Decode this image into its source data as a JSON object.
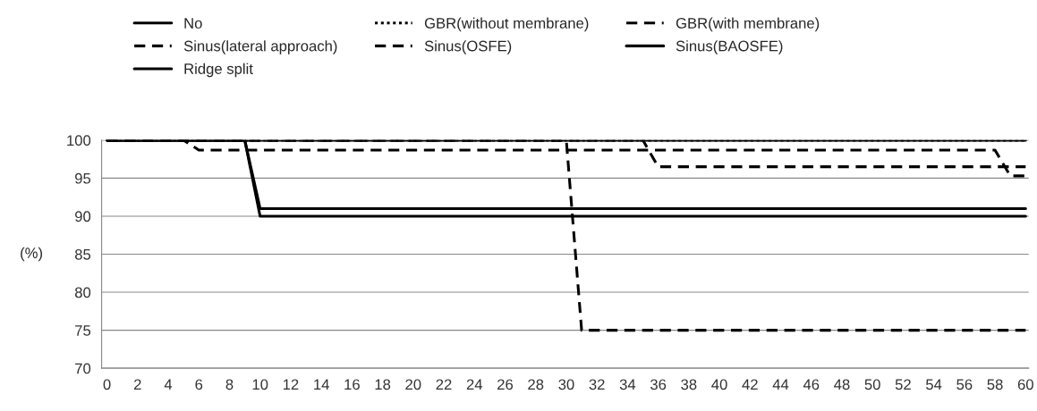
{
  "chart_data": {
    "type": "line",
    "ylabel": "(%)",
    "series": [
      {
        "name": "No",
        "color": "#000000",
        "line_style": "solid",
        "x": [
          0,
          60
        ],
        "values": [
          100,
          100
        ]
      },
      {
        "name": "GBR(without membrane)",
        "color": "#000000",
        "line_style": "dotted",
        "x": [
          0,
          60
        ],
        "values": [
          100,
          100
        ]
      },
      {
        "name": "GBR(with membrane)",
        "color": "#000000",
        "line_style": "dashed",
        "x": [
          0,
          5,
          6,
          58,
          59,
          60
        ],
        "values": [
          100,
          100,
          98.7,
          98.7,
          95.3,
          95.3
        ]
      },
      {
        "name": "Sinus(lateral approach)",
        "color": "#000000",
        "line_style": "dashed",
        "x": [
          0,
          35,
          36,
          60
        ],
        "values": [
          100,
          100,
          96.5,
          96.5
        ]
      },
      {
        "name": "Sinus(OSFE)",
        "color": "#000000",
        "line_style": "dashed",
        "x": [
          0,
          30,
          31,
          60
        ],
        "values": [
          100,
          100,
          75,
          75
        ]
      },
      {
        "name": "Sinus(BAOSFE)",
        "color": "#000000",
        "line_style": "solid",
        "x": [
          0,
          9,
          10,
          60
        ],
        "values": [
          100,
          100,
          91,
          91
        ]
      },
      {
        "name": "Ridge split",
        "color": "#000000",
        "line_style": "solid",
        "x": [
          0,
          9,
          10,
          60
        ],
        "values": [
          100,
          100,
          90,
          90
        ]
      }
    ],
    "xlim": [
      -0.35,
      60.2
    ],
    "xticks": [
      0,
      2,
      4,
      6,
      8,
      10,
      12,
      14,
      16,
      18,
      20,
      22,
      24,
      26,
      28,
      30,
      32,
      34,
      36,
      38,
      40,
      42,
      44,
      46,
      48,
      50,
      52,
      54,
      56,
      58,
      60
    ],
    "ylim": [
      70,
      100
    ],
    "yticks": [
      70,
      75,
      80,
      85,
      90,
      95,
      100
    ],
    "grid": "y",
    "legend": "top",
    "marker": "none"
  }
}
